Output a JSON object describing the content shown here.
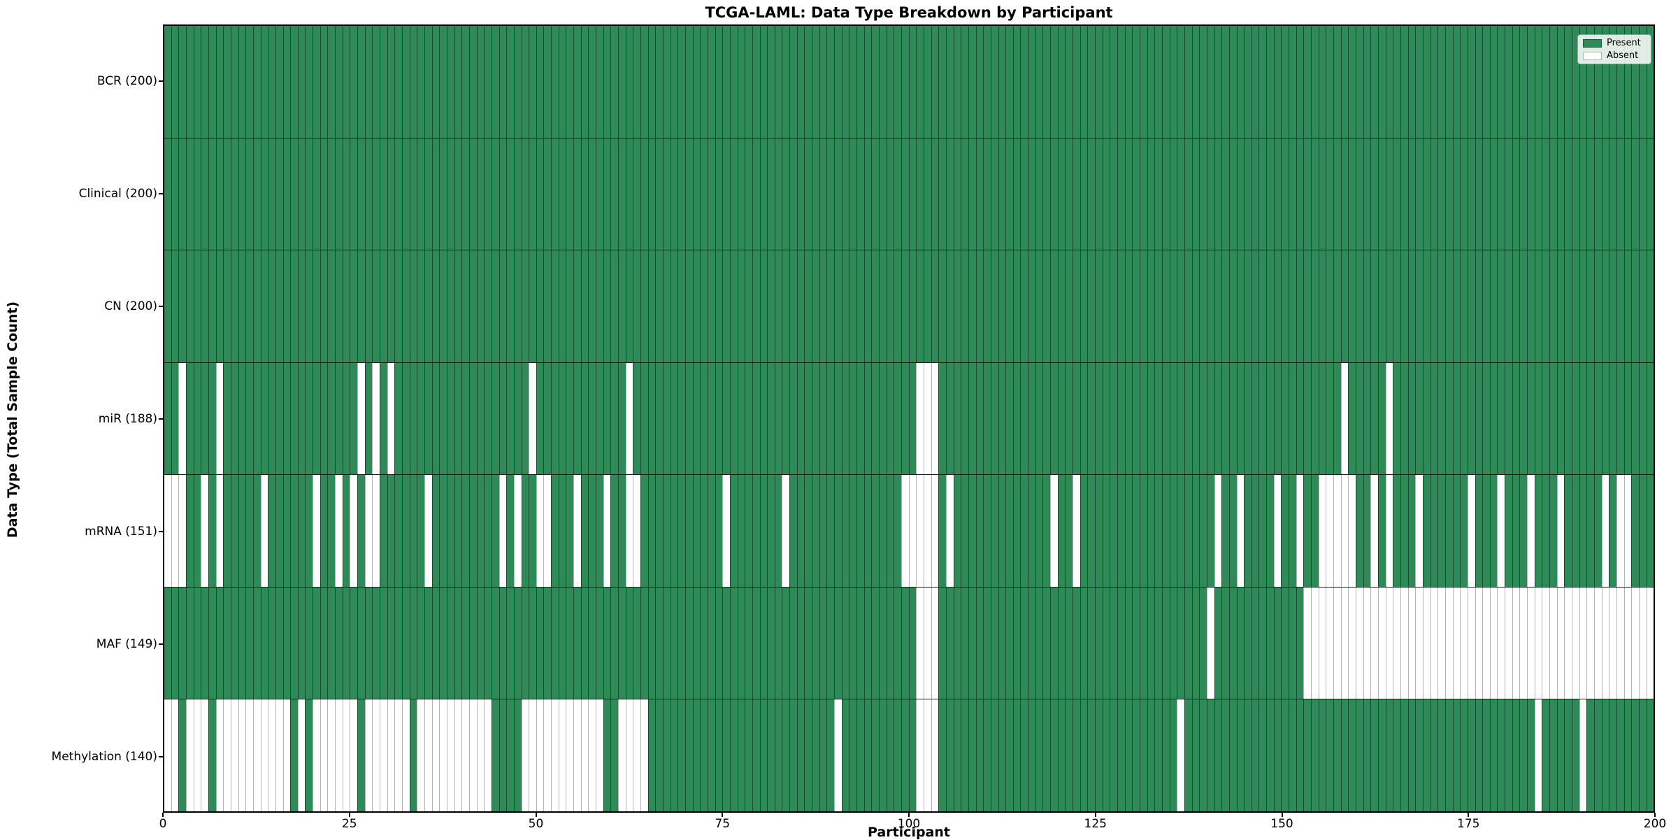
{
  "title": "TCGA-LAML: Data Type Breakdown by Participant",
  "x_axis": {
    "label": "Participant",
    "ticks": [
      0,
      25,
      50,
      75,
      100,
      125,
      150,
      175,
      200
    ],
    "min": 0,
    "max": 200
  },
  "y_axis": {
    "label": "Data Type (Total Sample Count)"
  },
  "legend": {
    "present_label": "Present",
    "absent_label": "Absent"
  },
  "colors": {
    "present": "#2E8B57",
    "present_edge": "#1d5838",
    "absent": "#ffffff",
    "absent_edge": "#b4b4b4"
  },
  "chart_data": {
    "type": "heatmap",
    "title": "TCGA-LAML: Data Type Breakdown by Participant",
    "xlabel": "Participant",
    "ylabel": "Data Type (Total Sample Count)",
    "x_range": [
      0,
      200
    ],
    "x_ticks": [
      0,
      25,
      50,
      75,
      100,
      125,
      150,
      175,
      200
    ],
    "n_participants": 200,
    "legend_entries": [
      "Present",
      "Absent"
    ],
    "legend_position": "upper right",
    "rows": [
      {
        "label": "BCR (200)",
        "data_type": "BCR",
        "present_count": 200,
        "absent_count": 0,
        "absent_participants": []
      },
      {
        "label": "Clinical (200)",
        "data_type": "Clinical",
        "present_count": 200,
        "absent_count": 0,
        "absent_participants": []
      },
      {
        "label": "CN (200)",
        "data_type": "CN",
        "present_count": 200,
        "absent_count": 0,
        "absent_participants": []
      },
      {
        "label": "miR (188)",
        "data_type": "miR",
        "present_count": 188,
        "absent_count": 12,
        "absent_participants": [
          2,
          7,
          26,
          28,
          30,
          49,
          62,
          101,
          102,
          103,
          158,
          164
        ]
      },
      {
        "label": "mRNA (151)",
        "data_type": "mRNA",
        "present_count": 151,
        "absent_count": 49,
        "absent_participants": [
          0,
          1,
          2,
          5,
          7,
          13,
          20,
          23,
          25,
          27,
          28,
          35,
          45,
          47,
          50,
          51,
          55,
          59,
          62,
          63,
          75,
          83,
          99,
          100,
          101,
          102,
          103,
          105,
          119,
          122,
          141,
          144,
          149,
          152,
          155,
          156,
          157,
          158,
          159,
          162,
          164,
          168,
          175,
          179,
          183,
          187,
          193,
          195,
          196
        ]
      },
      {
        "label": "MAF (149)",
        "data_type": "MAF",
        "present_count": 149,
        "absent_count": 51,
        "absent_participants": [
          101,
          102,
          103,
          140,
          153,
          154,
          155,
          156,
          157,
          158,
          159,
          160,
          161,
          162,
          163,
          164,
          165,
          166,
          167,
          168,
          169,
          170,
          171,
          172,
          173,
          174,
          175,
          176,
          177,
          178,
          179,
          180,
          181,
          182,
          183,
          184,
          185,
          186,
          187,
          188,
          189,
          190,
          191,
          192,
          193,
          194,
          195,
          196,
          197,
          198,
          199
        ]
      },
      {
        "label": "Methylation (140)",
        "data_type": "Methylation",
        "present_count": 140,
        "absent_count": 60,
        "absent_participants": [
          0,
          1,
          3,
          4,
          5,
          7,
          8,
          9,
          10,
          11,
          12,
          13,
          14,
          15,
          16,
          18,
          20,
          21,
          22,
          23,
          24,
          25,
          27,
          28,
          29,
          30,
          31,
          32,
          34,
          35,
          36,
          37,
          38,
          39,
          40,
          41,
          42,
          43,
          48,
          49,
          50,
          51,
          52,
          53,
          54,
          55,
          56,
          57,
          58,
          61,
          62,
          63,
          64,
          90,
          101,
          102,
          103,
          136,
          184,
          190
        ]
      }
    ]
  }
}
